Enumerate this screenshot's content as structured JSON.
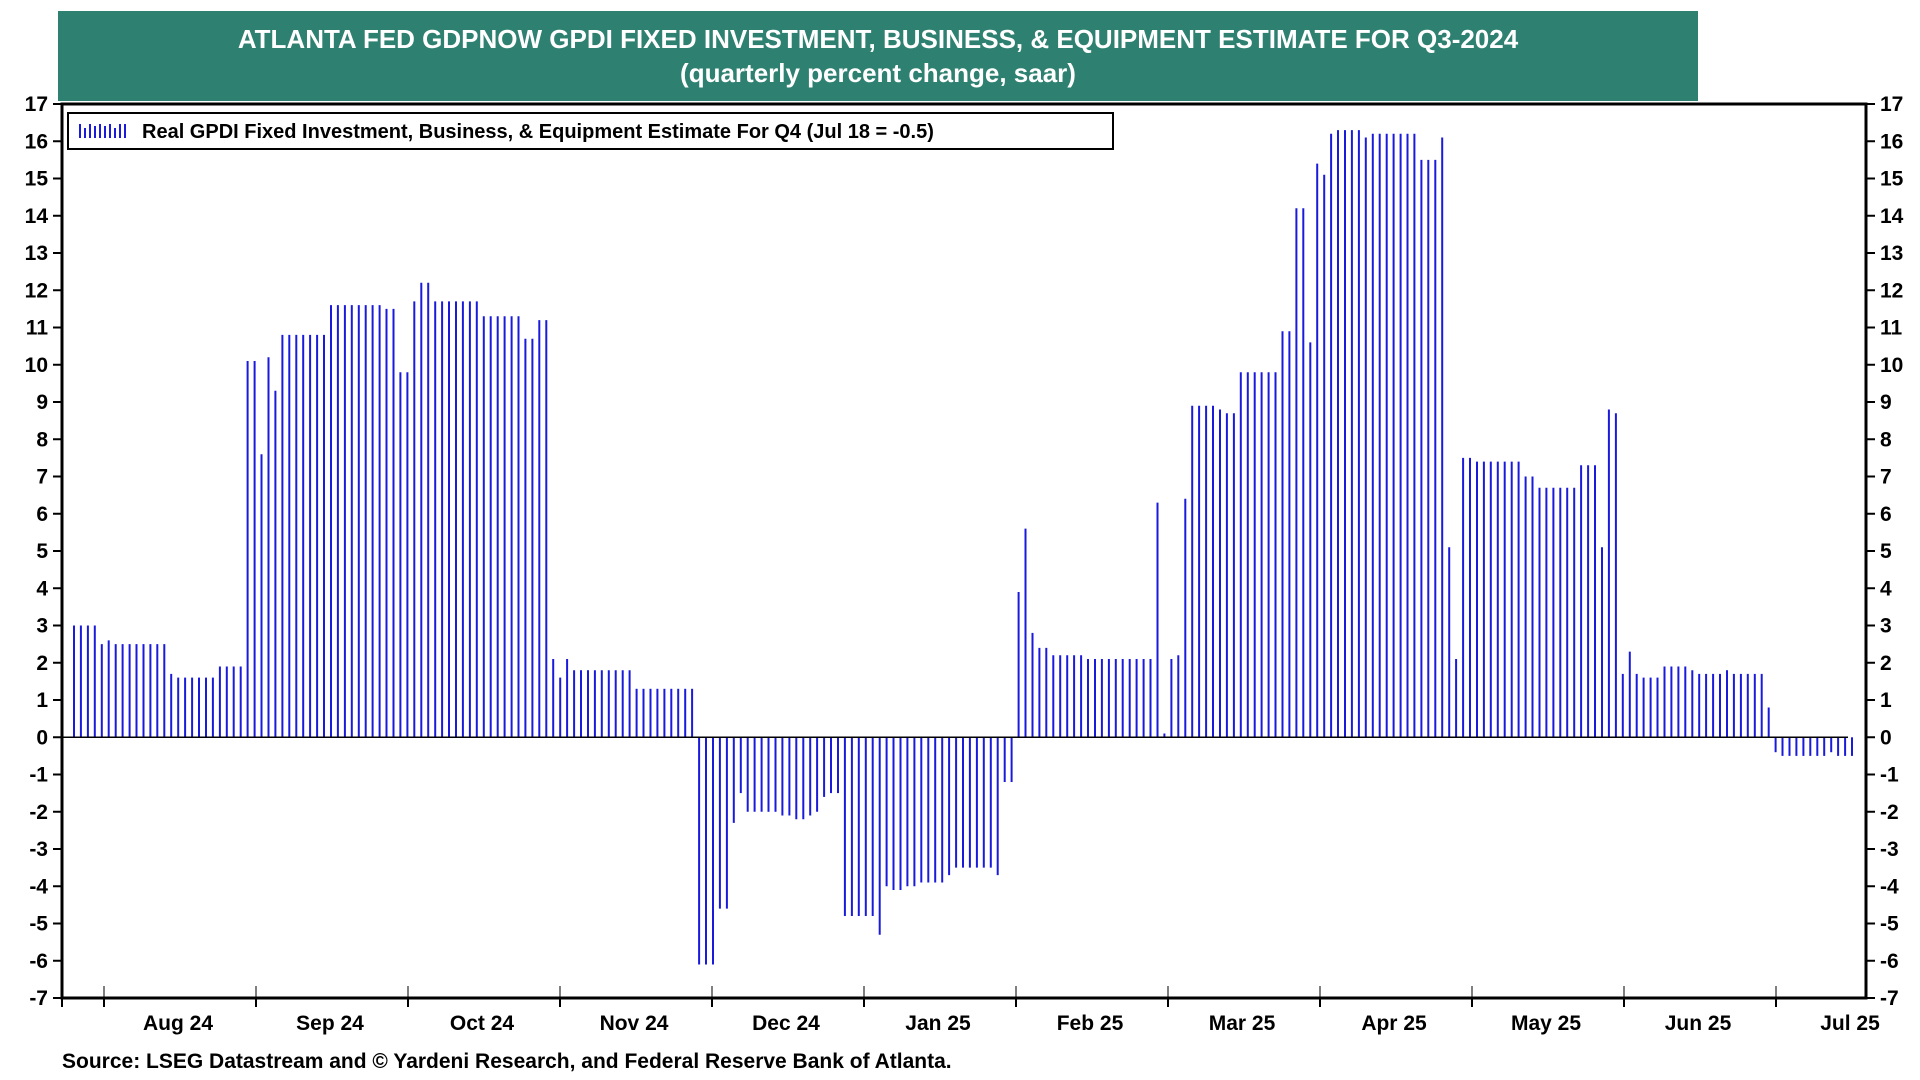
{
  "title": {
    "line1": "ATLANTA FED GDPNOW GPDI FIXED INVESTMENT, BUSINESS, & EQUIPMENT ESTIMATE FOR Q3-2024",
    "line2": "(quarterly percent change, saar)"
  },
  "source": "Source: LSEG Datastream and © Yardeni Research, and Federal Reserve Bank of Atlanta.",
  "colors": {
    "banner": "#2e8070",
    "bars": "#1a1adc",
    "frame": "#000000"
  },
  "chart_data": {
    "type": "bar",
    "ylim": [
      -7,
      17
    ],
    "yticks": [
      -7,
      -6,
      -5,
      -4,
      -3,
      -2,
      -1,
      0,
      1,
      2,
      3,
      4,
      5,
      6,
      7,
      8,
      9,
      10,
      11,
      12,
      13,
      14,
      15,
      16,
      17
    ],
    "y_axis_both_sides": true,
    "grid": false,
    "legend_position": "top-left",
    "months": [
      "Aug 24",
      "Sep 24",
      "Oct 24",
      "Nov 24",
      "Dec 24",
      "Jan 25",
      "Feb 25",
      "Mar 25",
      "Apr 25",
      "May 25",
      "Jun 25",
      "Jul 25"
    ],
    "series": [
      {
        "name": "Real GPDI Fixed Investment, Business, & Equipment Estimate For Q4 (Jul 18 = -0.5)",
        "values": [
          3.0,
          3.0,
          3.0,
          3.0,
          2.5,
          2.6,
          2.5,
          2.5,
          2.5,
          2.5,
          2.5,
          2.5,
          2.5,
          2.5,
          1.7,
          1.6,
          1.6,
          1.6,
          1.6,
          1.6,
          1.6,
          1.9,
          1.9,
          1.9,
          1.9,
          10.1,
          10.1,
          7.6,
          10.2,
          9.3,
          10.8,
          10.8,
          10.8,
          10.8,
          10.8,
          10.8,
          10.8,
          11.6,
          11.6,
          11.6,
          11.6,
          11.6,
          11.6,
          11.6,
          11.6,
          11.5,
          11.5,
          9.8,
          9.8,
          11.7,
          12.2,
          12.2,
          11.7,
          11.7,
          11.7,
          11.7,
          11.7,
          11.7,
          11.7,
          11.3,
          11.3,
          11.3,
          11.3,
          11.3,
          11.3,
          10.7,
          10.7,
          11.2,
          11.2,
          2.1,
          1.6,
          2.1,
          1.8,
          1.8,
          1.8,
          1.8,
          1.8,
          1.8,
          1.8,
          1.8,
          1.8,
          1.3,
          1.3,
          1.3,
          1.3,
          1.3,
          1.3,
          1.3,
          1.3,
          1.3,
          -6.1,
          -6.1,
          -6.1,
          -4.6,
          -4.6,
          -2.3,
          -1.5,
          -2.0,
          -2.0,
          -2.0,
          -2.0,
          -2.0,
          -2.1,
          -2.1,
          -2.2,
          -2.2,
          -2.1,
          -2.0,
          -1.6,
          -1.5,
          -1.5,
          -4.8,
          -4.8,
          -4.8,
          -4.8,
          -4.8,
          -5.3,
          -4.0,
          -4.1,
          -4.1,
          -4.0,
          -4.0,
          -3.9,
          -3.9,
          -3.9,
          -3.9,
          -3.7,
          -3.5,
          -3.5,
          -3.5,
          -3.5,
          -3.5,
          -3.5,
          -3.7,
          -1.2,
          -1.2,
          3.9,
          5.6,
          2.8,
          2.4,
          2.4,
          2.2,
          2.2,
          2.2,
          2.2,
          2.2,
          2.1,
          2.1,
          2.1,
          2.1,
          2.1,
          2.1,
          2.1,
          2.1,
          2.1,
          2.1,
          6.3,
          0.1,
          2.1,
          2.2,
          6.4,
          8.9,
          8.9,
          8.9,
          8.9,
          8.8,
          8.7,
          8.7,
          9.8,
          9.8,
          9.8,
          9.8,
          9.8,
          9.8,
          10.9,
          10.9,
          14.2,
          14.2,
          10.6,
          15.4,
          15.1,
          16.2,
          16.3,
          16.3,
          16.3,
          16.3,
          16.1,
          16.2,
          16.2,
          16.2,
          16.2,
          16.2,
          16.2,
          16.2,
          15.5,
          15.5,
          15.5,
          16.1,
          5.1,
          2.1,
          7.5,
          7.5,
          7.4,
          7.4,
          7.4,
          7.4,
          7.4,
          7.4,
          7.4,
          7.0,
          7.0,
          6.7,
          6.7,
          6.7,
          6.7,
          6.7,
          6.7,
          7.3,
          7.3,
          7.3,
          5.1,
          8.8,
          8.7,
          1.7,
          2.3,
          1.7,
          1.6,
          1.6,
          1.6,
          1.9,
          1.9,
          1.9,
          1.9,
          1.8,
          1.7,
          1.7,
          1.7,
          1.7,
          1.8,
          1.7,
          1.7,
          1.7,
          1.7,
          1.7,
          0.8,
          -0.4,
          -0.5,
          -0.5,
          -0.5,
          -0.5,
          -0.5,
          -0.5,
          -0.5,
          -0.4,
          -0.5,
          -0.5,
          -0.5
        ]
      }
    ]
  }
}
